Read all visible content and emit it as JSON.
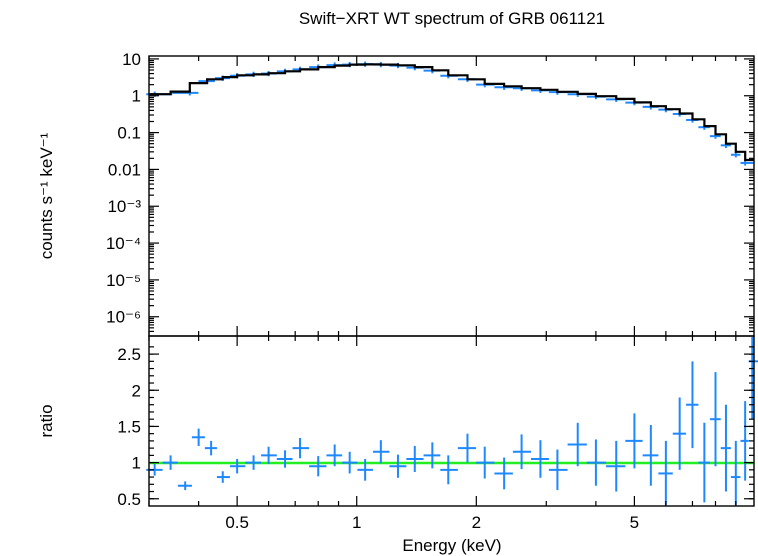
{
  "chart_data": [
    {
      "type": "scatter",
      "title": "Swift−XRT WT spectrum of GRB 061121",
      "ylabel": "counts s⁻¹ keV⁻¹",
      "xlabel": "",
      "x_scale": "log",
      "y_scale": "log",
      "xlim": [
        0.3,
        10
      ],
      "ylim": [
        3e-07,
        12
      ],
      "y_tick_labels": [
        "10",
        "1",
        "0.1",
        "0.01",
        "10⁻³",
        "10⁻⁴",
        "10⁻⁵",
        "10⁻⁶"
      ],
      "grid": false,
      "colors": {
        "data": "#1e88ff",
        "model": "#000000"
      },
      "series": [
        {
          "style": "error-crosses",
          "x": [
            0.31,
            0.38,
            0.42,
            0.46,
            0.5,
            0.55,
            0.6,
            0.66,
            0.72,
            0.8,
            0.88,
            0.96,
            1.05,
            1.15,
            1.27,
            1.4,
            1.55,
            1.7,
            1.9,
            2.1,
            2.35,
            2.6,
            2.9,
            3.2,
            3.6,
            4.0,
            4.5,
            5.0,
            5.5,
            6.0,
            6.5,
            7.0,
            7.5,
            8.0,
            8.5,
            9.0,
            9.5
          ],
          "y": [
            1.1,
            1.2,
            2.5,
            3.0,
            3.5,
            3.8,
            4.0,
            4.6,
            5.2,
            6.0,
            6.8,
            7.0,
            7.2,
            7.0,
            6.6,
            5.8,
            4.8,
            3.5,
            2.8,
            2.0,
            1.7,
            1.6,
            1.4,
            1.25,
            1.1,
            0.95,
            0.8,
            0.65,
            0.5,
            0.42,
            0.32,
            0.22,
            0.14,
            0.08,
            0.045,
            0.025,
            0.015
          ]
        },
        {
          "style": "model-step",
          "x": [
            0.3,
            0.34,
            0.38,
            0.42,
            0.46,
            0.5,
            0.55,
            0.6,
            0.66,
            0.72,
            0.8,
            0.88,
            0.96,
            1.05,
            1.15,
            1.27,
            1.4,
            1.55,
            1.7,
            1.9,
            2.1,
            2.35,
            2.6,
            2.9,
            3.2,
            3.6,
            4.0,
            4.5,
            5.0,
            5.5,
            6.0,
            6.5,
            7.0,
            7.5,
            8.0,
            8.5,
            9.0,
            9.5,
            10.0
          ],
          "y": [
            1.1,
            1.3,
            2.2,
            2.8,
            3.2,
            3.6,
            3.8,
            4.1,
            4.6,
            5.2,
            6.0,
            6.6,
            7.0,
            7.1,
            7.0,
            6.7,
            6.0,
            4.9,
            3.6,
            2.8,
            2.1,
            1.8,
            1.6,
            1.45,
            1.28,
            1.12,
            0.97,
            0.82,
            0.66,
            0.52,
            0.43,
            0.33,
            0.23,
            0.15,
            0.09,
            0.05,
            0.03,
            0.018,
            0.015
          ]
        }
      ]
    },
    {
      "type": "scatter",
      "ylabel": "ratio",
      "xlabel": "Energy (keV)",
      "x_scale": "log",
      "y_scale": "linear",
      "xlim": [
        0.3,
        10
      ],
      "ylim": [
        0.4,
        2.75
      ],
      "x_tick_labels": [
        "0.5",
        "1",
        "2",
        "5"
      ],
      "x_tick_values": [
        0.5,
        1,
        2,
        5
      ],
      "y_tick_labels": [
        "0.5",
        "1",
        "1.5",
        "2",
        "2.5"
      ],
      "y_tick_values": [
        0.5,
        1,
        1.5,
        2,
        2.5
      ],
      "reference_line": 1.0,
      "grid": false,
      "colors": {
        "data": "#1e88ff",
        "reference": "#22ee22"
      },
      "series": [
        {
          "style": "error-crosses",
          "x": [
            0.31,
            0.34,
            0.37,
            0.4,
            0.43,
            0.46,
            0.5,
            0.55,
            0.6,
            0.66,
            0.72,
            0.8,
            0.88,
            0.96,
            1.05,
            1.15,
            1.27,
            1.4,
            1.55,
            1.7,
            1.9,
            2.1,
            2.35,
            2.6,
            2.9,
            3.2,
            3.6,
            4.0,
            4.5,
            5.0,
            5.5,
            6.0,
            6.5,
            7.0,
            7.5,
            8.0,
            8.5,
            9.0,
            9.5,
            9.9
          ],
          "y": [
            0.9,
            1.0,
            0.68,
            1.35,
            1.2,
            0.8,
            0.95,
            1.0,
            1.1,
            1.05,
            1.2,
            0.95,
            1.1,
            1.0,
            0.9,
            1.15,
            0.95,
            1.05,
            1.1,
            0.9,
            1.2,
            1.0,
            0.85,
            1.15,
            1.05,
            0.9,
            1.25,
            1.0,
            0.95,
            1.3,
            1.1,
            0.85,
            1.4,
            1.8,
            1.0,
            1.6,
            1.2,
            0.8,
            1.3,
            2.4
          ],
          "yerr": [
            0.08,
            0.1,
            0.06,
            0.12,
            0.1,
            0.08,
            0.1,
            0.1,
            0.12,
            0.12,
            0.14,
            0.14,
            0.15,
            0.15,
            0.15,
            0.16,
            0.16,
            0.18,
            0.18,
            0.2,
            0.2,
            0.22,
            0.22,
            0.24,
            0.26,
            0.28,
            0.3,
            0.32,
            0.35,
            0.38,
            0.42,
            0.45,
            0.5,
            0.6,
            0.55,
            0.65,
            0.6,
            0.5,
            0.55,
            0.8
          ]
        }
      ]
    }
  ]
}
